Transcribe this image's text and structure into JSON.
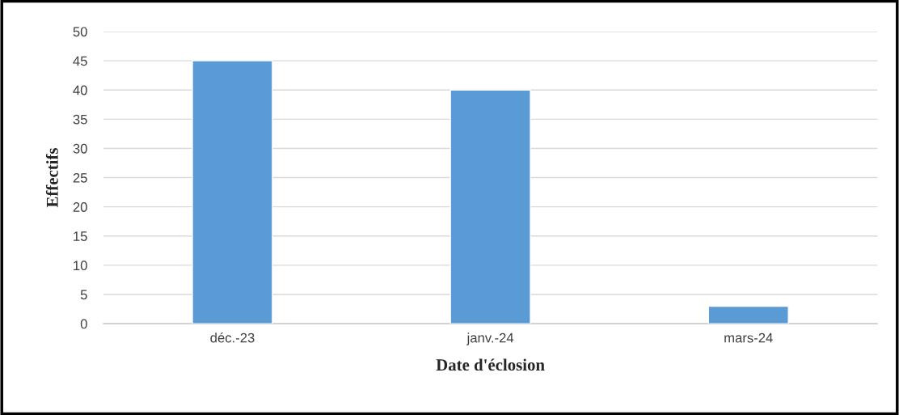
{
  "chart_data": {
    "type": "bar",
    "xlabel": "Date d'éclosion",
    "ylabel": "Effectifs",
    "categories": [
      "déc.-23",
      "janv.-24",
      "mars-24"
    ],
    "values": [
      45,
      40,
      3
    ],
    "color": "#5b9bd5",
    "ylim": [
      0,
      50
    ],
    "yticks": [
      0,
      5,
      10,
      15,
      20,
      25,
      30,
      35,
      40,
      45,
      50
    ],
    "grid": "y"
  }
}
